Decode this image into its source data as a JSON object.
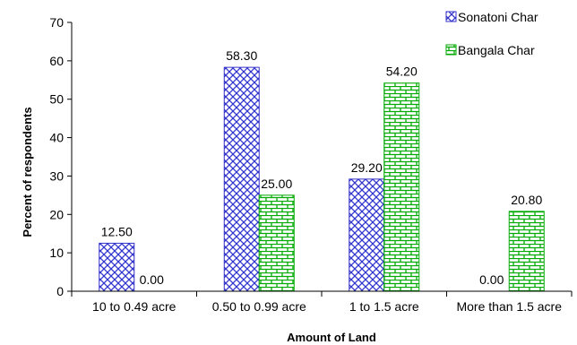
{
  "chart_data": {
    "type": "bar",
    "title": "",
    "xlabel": "Amount of Land",
    "ylabel": "Percent of respondents",
    "ylim": [
      0,
      70
    ],
    "yticks": [
      0,
      10,
      20,
      30,
      40,
      50,
      60,
      70
    ],
    "categories": [
      "10 to 0.49 acre",
      "0.50 to 0.99 acre",
      "1 to 1.5 acre",
      "More than 1.5 acre"
    ],
    "series": [
      {
        "name": "Sonatoni Char",
        "values": [
          12.5,
          58.3,
          29.2,
          0.0
        ],
        "labels": [
          "12.50",
          "58.30",
          "29.20",
          "0.00"
        ],
        "color": "#3333cc",
        "pattern": "blue-crosshatch"
      },
      {
        "name": "Bangala Char",
        "values": [
          0.0,
          25.0,
          54.2,
          20.8
        ],
        "labels": [
          "0.00",
          "25.00",
          "54.20",
          "20.80"
        ],
        "color": "#00aa00",
        "pattern": "green-brick"
      }
    ],
    "grid": false,
    "legend": "top-right"
  }
}
